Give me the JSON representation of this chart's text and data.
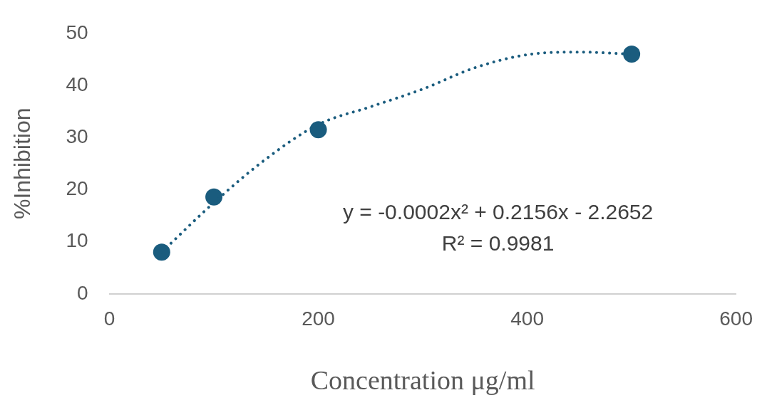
{
  "chart_data": {
    "type": "scatter",
    "xlabel": "Concentration μg/ml",
    "ylabel": "%Inhibition",
    "xlim": [
      0,
      600
    ],
    "xticks": [
      0,
      200,
      400,
      600
    ],
    "ylim": [
      0,
      50
    ],
    "yticks": [
      0,
      10,
      20,
      30,
      40,
      50
    ],
    "grid": false,
    "legend": false,
    "annotations": [
      "y = -0.0002x² + 0.2156x - 2.2652",
      "R² = 0.9981"
    ],
    "series": [
      {
        "type": "line",
        "color": "#1a5c7e",
        "line_style": "dotted",
        "marker": "none",
        "x": [
          50,
          100,
          150,
          200,
          250,
          300,
          350,
          400,
          450,
          500
        ],
        "values": [
          8.0,
          17.5,
          25.9,
          32.5,
          35.9,
          39.3,
          43.4,
          45.9,
          46.4,
          46.0
        ]
      },
      {
        "color": "#1a5c7e",
        "marker": "circle",
        "x": [
          50,
          100,
          200,
          500
        ],
        "values": [
          8.0,
          18.6,
          31.5,
          46.0
        ]
      }
    ]
  }
}
